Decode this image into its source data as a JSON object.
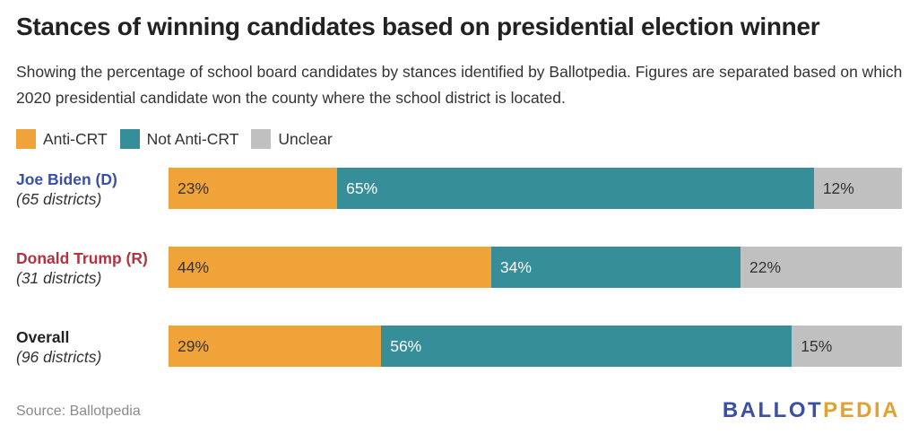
{
  "header": {
    "title": "Stances of winning candidates based on presidential election winner",
    "subtitle": "Showing the percentage of school board candidates by stances identified by Ballotpedia. Figures are separated based on which 2020 presidential candidate won the county where the school district is located."
  },
  "chart_data": {
    "type": "bar",
    "orientation": "horizontal",
    "stacked": "100%",
    "categories": [
      "Joe Biden (D)",
      "Donald Trump (R)",
      "Overall"
    ],
    "category_notes": [
      "(65 districts)",
      "(31 districts)",
      "(96 districts)"
    ],
    "category_colors": [
      "#3a4fa6",
      "#b5323f",
      "#222222"
    ],
    "series": [
      {
        "name": "Anti-CRT",
        "color": "#f0a339",
        "text_color": "#333333",
        "values": [
          23,
          44,
          29
        ],
        "labels": [
          "23%",
          "44%",
          "29%"
        ]
      },
      {
        "name": "Not Anti-CRT",
        "color": "#368e99",
        "text_color": "#ffffff",
        "values": [
          65,
          34,
          56
        ],
        "labels": [
          "65%",
          "34%",
          "56%"
        ]
      },
      {
        "name": "Unclear",
        "color": "#c0c0c0",
        "text_color": "#333333",
        "values": [
          12,
          22,
          15
        ],
        "labels": [
          "12%",
          "22%",
          "15%"
        ]
      }
    ],
    "legend_position": "top-left"
  },
  "footer": {
    "source": "Source: Ballotpedia",
    "logo_part1": "BALLOT",
    "logo_part2": "PEDIA",
    "logo_color1": "#3a4fa6",
    "logo_color2": "#e0a232"
  }
}
